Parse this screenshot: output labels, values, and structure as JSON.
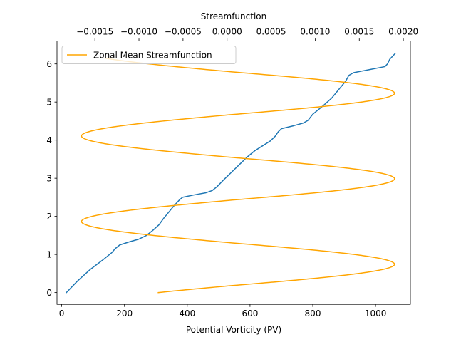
{
  "chart_data": {
    "type": "line",
    "title": "",
    "bottom_axis": {
      "label": "Potential Vorticity (PV)",
      "range": [
        -15,
        1111
      ],
      "ticks": [
        0,
        200,
        400,
        600,
        800,
        1000
      ],
      "tick_labels": [
        "0",
        "200",
        "400",
        "600",
        "800",
        "1000"
      ]
    },
    "top_axis": {
      "label": "Streamfunction",
      "range": [
        -0.00193,
        0.00208
      ],
      "ticks": [
        -0.0015,
        -0.001,
        -0.0005,
        0.0,
        0.0005,
        0.001,
        0.0015,
        0.002
      ],
      "tick_labels": [
        "−0.0015",
        "−0.0010",
        "−0.0005",
        "0.0000",
        "0.0005",
        "0.0010",
        "0.0015",
        "0.0020"
      ]
    },
    "y_axis": {
      "label": "",
      "range": [
        -0.31,
        6.6
      ],
      "ticks": [
        0,
        1,
        2,
        3,
        4,
        5,
        6
      ],
      "tick_labels": [
        "0",
        "1",
        "2",
        "3",
        "4",
        "5",
        "6"
      ]
    },
    "legend": {
      "placement": "upper-left",
      "entries": [
        "Zonal Mean Streamfunction"
      ]
    },
    "grid": false,
    "series": [
      {
        "axis": "bottom",
        "color": "#1f77b4",
        "points": [
          [
            15,
            0.0
          ],
          [
            50,
            0.3
          ],
          [
            90,
            0.6
          ],
          [
            130,
            0.85
          ],
          [
            160,
            1.05
          ],
          [
            170,
            1.15
          ],
          [
            185,
            1.25
          ],
          [
            215,
            1.33
          ],
          [
            245,
            1.4
          ],
          [
            270,
            1.5
          ],
          [
            290,
            1.63
          ],
          [
            310,
            1.78
          ],
          [
            325,
            1.95
          ],
          [
            340,
            2.1
          ],
          [
            360,
            2.3
          ],
          [
            375,
            2.43
          ],
          [
            385,
            2.5
          ],
          [
            420,
            2.56
          ],
          [
            460,
            2.62
          ],
          [
            480,
            2.68
          ],
          [
            495,
            2.78
          ],
          [
            515,
            2.95
          ],
          [
            540,
            3.15
          ],
          [
            565,
            3.35
          ],
          [
            590,
            3.55
          ],
          [
            615,
            3.72
          ],
          [
            640,
            3.85
          ],
          [
            665,
            3.98
          ],
          [
            680,
            4.1
          ],
          [
            690,
            4.22
          ],
          [
            700,
            4.3
          ],
          [
            740,
            4.38
          ],
          [
            770,
            4.45
          ],
          [
            785,
            4.52
          ],
          [
            800,
            4.68
          ],
          [
            830,
            4.88
          ],
          [
            860,
            5.1
          ],
          [
            885,
            5.35
          ],
          [
            905,
            5.55
          ],
          [
            915,
            5.7
          ],
          [
            930,
            5.77
          ],
          [
            980,
            5.85
          ],
          [
            1030,
            5.93
          ],
          [
            1038,
            6.0
          ],
          [
            1045,
            6.12
          ],
          [
            1062,
            6.27
          ]
        ]
      },
      {
        "axis": "top",
        "color": "#ffa500",
        "name": "Zonal Mean Streamfunction",
        "profile": {
          "y_start": 0.0,
          "y_end": 6.15,
          "mean": 5e-05,
          "amplitude": 0.00185,
          "frequency": 2.8,
          "phase_offset": 0.51,
          "amplitude_left_scale": 0.92,
          "amplitude_right_scale": 1.0
        }
      }
    ]
  }
}
